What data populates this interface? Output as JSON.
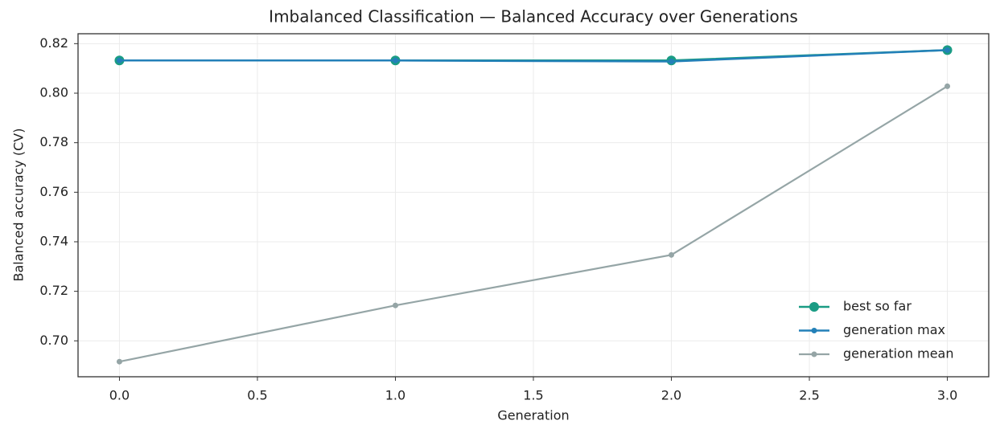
{
  "chart_data": {
    "type": "line",
    "title": "Imbalanced Classification — Balanced Accuracy over Generations",
    "xlabel": "Generation",
    "ylabel": "Balanced accuracy (CV)",
    "x": [
      0,
      1,
      2,
      3
    ],
    "series": [
      {
        "name": "best so far",
        "color": "#1a9c84",
        "values": [
          0.8132,
          0.8132,
          0.8132,
          0.8174
        ]
      },
      {
        "name": "generation max",
        "color": "#2380b8",
        "values": [
          0.8132,
          0.8132,
          0.8128,
          0.8174
        ]
      },
      {
        "name": "generation mean",
        "color": "#95a5a6",
        "values": [
          0.6916,
          0.7143,
          0.7347,
          0.8028
        ]
      }
    ],
    "xlim": [
      -0.15,
      3.15
    ],
    "xticks": [
      {
        "value": 0,
        "label": "0.0"
      },
      0.5,
      {
        "value": 1,
        "label": "1.0"
      },
      1.5,
      {
        "value": 2,
        "label": "2.0"
      },
      2.5,
      {
        "value": 3,
        "label": "3.0"
      }
    ],
    "ylim": [
      0.6855,
      0.824
    ],
    "yticks": [
      {
        "value": 0.7,
        "label": "0.70"
      },
      0.72,
      0.74,
      0.76,
      0.78,
      {
        "value": 0.8,
        "label": "0.80"
      },
      0.82
    ],
    "grid": true,
    "legend": "lower right"
  }
}
